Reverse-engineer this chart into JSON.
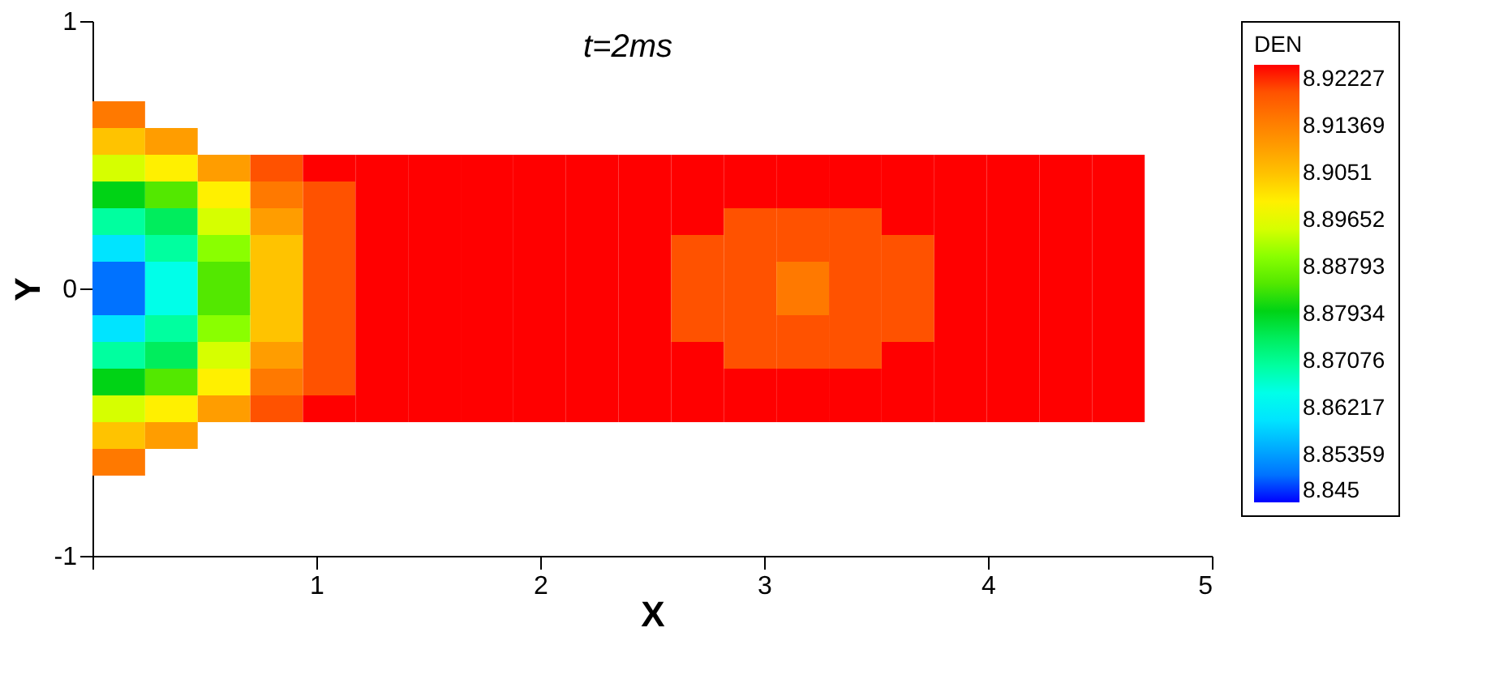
{
  "chart_data": {
    "type": "heatmap",
    "xlabel": "X",
    "ylabel": "Y",
    "clabel": "DEN",
    "annotations": [
      "t=2ms"
    ],
    "x": [
      0.1175,
      0.3525,
      0.5875,
      0.8225,
      1.0575,
      1.2925,
      1.5275,
      1.7625,
      1.9975,
      2.2325,
      2.4675,
      2.7025,
      2.9375,
      3.1725,
      3.4075,
      3.6425,
      3.8775,
      4.1125,
      4.3475,
      4.5825
    ],
    "y": [
      0.65,
      0.55,
      0.45,
      0.35,
      0.25,
      0.15,
      0.05,
      -0.05,
      -0.15,
      -0.25,
      -0.35,
      -0.45,
      -0.55,
      -0.65
    ],
    "cells": [
      [
        8.915,
        null,
        null,
        null,
        null,
        null,
        null,
        null,
        null,
        null,
        null,
        null,
        null,
        null,
        null,
        null,
        null,
        null,
        null,
        null
      ],
      [
        8.905,
        8.91,
        null,
        null,
        null,
        null,
        null,
        null,
        null,
        null,
        null,
        null,
        null,
        null,
        null,
        null,
        null,
        null,
        null,
        null
      ],
      [
        8.895,
        8.9,
        8.91,
        8.92,
        8.925,
        8.925,
        8.925,
        8.925,
        8.925,
        8.925,
        8.925,
        8.925,
        8.925,
        8.925,
        8.925,
        8.925,
        8.925,
        8.925,
        8.925,
        8.925
      ],
      [
        8.88,
        8.885,
        8.9,
        8.915,
        8.92,
        8.925,
        8.925,
        8.925,
        8.925,
        8.925,
        8.925,
        8.925,
        8.925,
        8.925,
        8.925,
        8.925,
        8.925,
        8.925,
        8.925,
        8.925
      ],
      [
        8.87,
        8.875,
        8.895,
        8.91,
        8.92,
        8.925,
        8.925,
        8.925,
        8.925,
        8.925,
        8.925,
        8.925,
        8.92,
        8.92,
        8.92,
        8.925,
        8.925,
        8.925,
        8.925,
        8.925
      ],
      [
        8.86,
        8.87,
        8.89,
        8.905,
        8.92,
        8.925,
        8.925,
        8.925,
        8.925,
        8.925,
        8.925,
        8.92,
        8.92,
        8.92,
        8.92,
        8.92,
        8.925,
        8.925,
        8.925,
        8.925
      ],
      [
        8.85,
        8.865,
        8.885,
        8.905,
        8.92,
        8.925,
        8.925,
        8.925,
        8.925,
        8.925,
        8.925,
        8.92,
        8.92,
        8.915,
        8.92,
        8.92,
        8.925,
        8.925,
        8.925,
        8.925
      ],
      [
        8.85,
        8.865,
        8.885,
        8.905,
        8.92,
        8.925,
        8.925,
        8.925,
        8.925,
        8.925,
        8.925,
        8.92,
        8.92,
        8.915,
        8.92,
        8.92,
        8.925,
        8.925,
        8.925,
        8.925
      ],
      [
        8.86,
        8.87,
        8.89,
        8.905,
        8.92,
        8.925,
        8.925,
        8.925,
        8.925,
        8.925,
        8.925,
        8.92,
        8.92,
        8.92,
        8.92,
        8.92,
        8.925,
        8.925,
        8.925,
        8.925
      ],
      [
        8.87,
        8.875,
        8.895,
        8.91,
        8.92,
        8.925,
        8.925,
        8.925,
        8.925,
        8.925,
        8.925,
        8.925,
        8.92,
        8.92,
        8.92,
        8.925,
        8.925,
        8.925,
        8.925,
        8.925
      ],
      [
        8.88,
        8.885,
        8.9,
        8.915,
        8.92,
        8.925,
        8.925,
        8.925,
        8.925,
        8.925,
        8.925,
        8.925,
        8.925,
        8.925,
        8.925,
        8.925,
        8.925,
        8.925,
        8.925,
        8.925
      ],
      [
        8.895,
        8.9,
        8.91,
        8.92,
        8.925,
        8.925,
        8.925,
        8.925,
        8.925,
        8.925,
        8.925,
        8.925,
        8.925,
        8.925,
        8.925,
        8.925,
        8.925,
        8.925,
        8.925,
        8.925
      ],
      [
        8.905,
        8.91,
        null,
        null,
        null,
        null,
        null,
        null,
        null,
        null,
        null,
        null,
        null,
        null,
        null,
        null,
        null,
        null,
        null,
        null
      ],
      [
        8.915,
        null,
        null,
        null,
        null,
        null,
        null,
        null,
        null,
        null,
        null,
        null,
        null,
        null,
        null,
        null,
        null,
        null,
        null,
        null
      ]
    ],
    "clim": [
      8.845,
      8.925
    ],
    "cticks": [
      8.845,
      8.85359,
      8.86217,
      8.87076,
      8.87934,
      8.88793,
      8.89652,
      8.9051,
      8.91369,
      8.92227
    ],
    "xlim": [
      0,
      5
    ],
    "xticks": [
      {
        "value": 0,
        "label": null
      },
      1,
      2,
      3,
      4,
      5
    ],
    "ylim": [
      -1,
      1
    ],
    "yticks": [
      -1,
      0,
      1
    ],
    "grid": false
  }
}
